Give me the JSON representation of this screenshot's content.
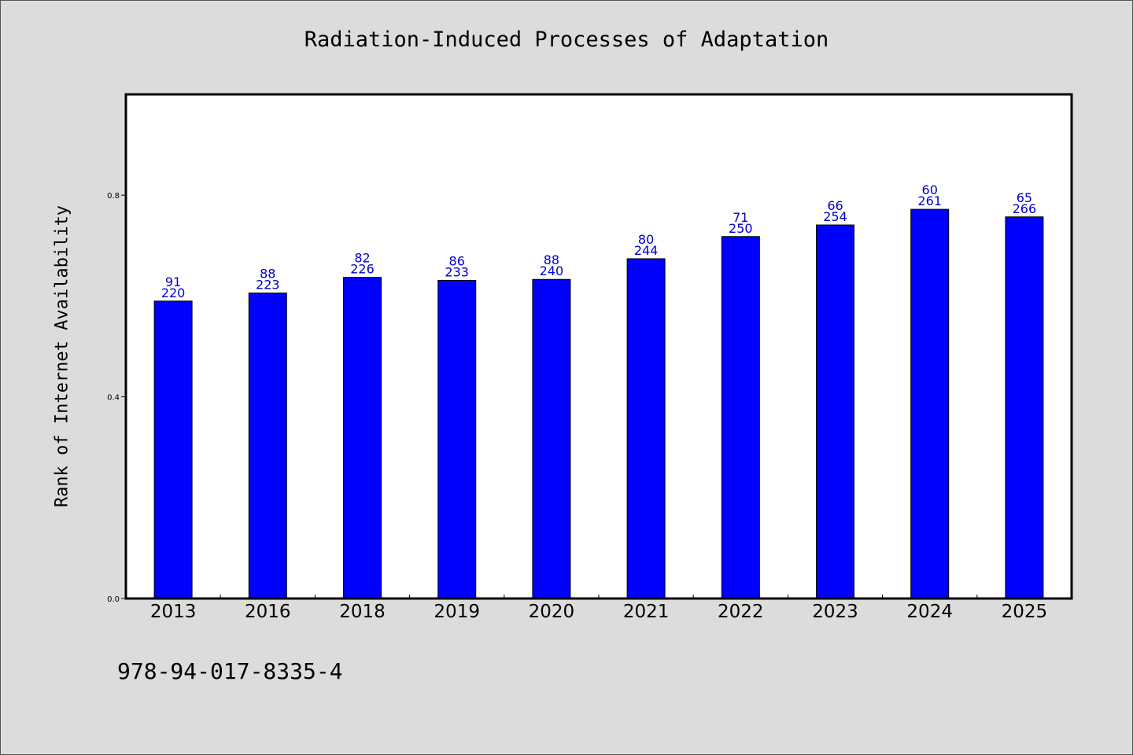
{
  "page": {
    "footer_text": "978-94-017-8335-4"
  },
  "chart_data": {
    "type": "bar",
    "title": "Radiation-Induced Processes of Adaptation",
    "xlabel": "",
    "ylabel": "Rank of Internet Availability",
    "categories": [
      "2013",
      "2016",
      "2018",
      "2019",
      "2020",
      "2021",
      "2022",
      "2023",
      "2024",
      "2025"
    ],
    "values": [
      0.59,
      0.606,
      0.637,
      0.631,
      0.633,
      0.674,
      0.718,
      0.741,
      0.772,
      0.757
    ],
    "labels_top": [
      "91",
      "88",
      "82",
      "86",
      "88",
      "80",
      "71",
      "66",
      "60",
      "65"
    ],
    "labels_bottom": [
      "220",
      "223",
      "226",
      "233",
      "240",
      "244",
      "250",
      "254",
      "261",
      "266"
    ],
    "ylim": [
      0,
      1.0
    ],
    "yticks": [
      0.0,
      0.4,
      0.8
    ],
    "ytick_labels": [
      "0.0",
      "0.4",
      "0.8"
    ],
    "grid": false,
    "colors": {
      "bar": "#0000ff",
      "data_label": "#0000cc",
      "plot_bg": "#ffffff",
      "page_bg": "#dcdcdc"
    }
  }
}
